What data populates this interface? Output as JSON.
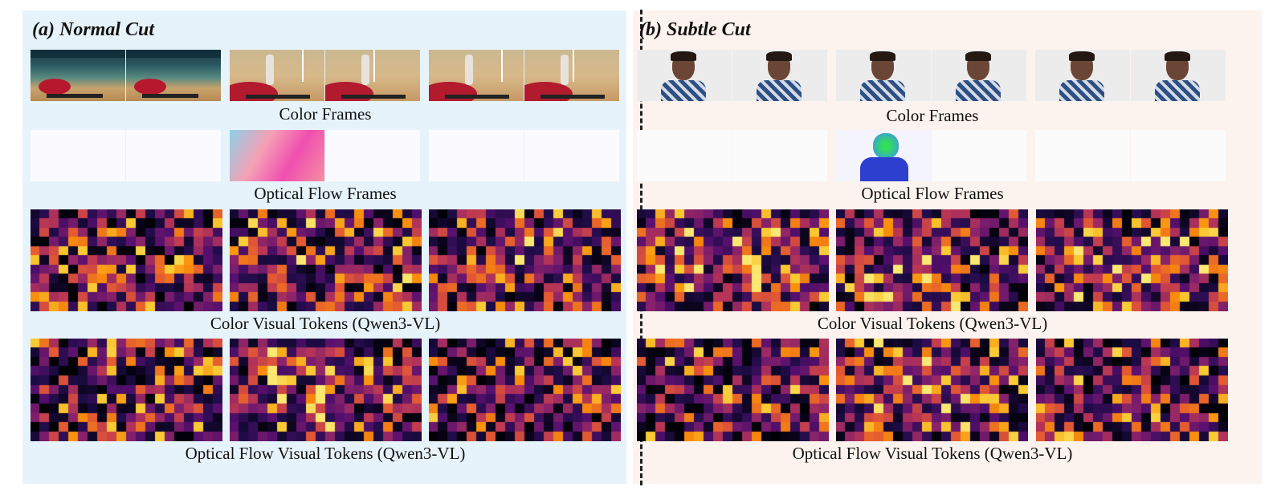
{
  "panels": [
    {
      "id": "a",
      "title": "(a) Normal Cut",
      "captions": {
        "color_frames": "Color Frames",
        "flow_frames": "Optical Flow Frames",
        "color_tokens": "Color Visual Tokens (Qwen3-VL)",
        "flow_tokens": "Optical Flow Visual Tokens (Qwen3-VL)"
      }
    },
    {
      "id": "b",
      "title": "(b) Subtle Cut",
      "captions": {
        "color_frames": "Color Frames",
        "flow_frames": "Optical Flow Frames",
        "color_tokens": "Color Visual Tokens (Qwen3-VL)",
        "flow_tokens": "Optical Flow Visual Tokens (Qwen3-VL)"
      }
    }
  ],
  "colors": {
    "panel_a_bg": "#e7f3fa",
    "panel_b_bg": "#fdf3ee",
    "colormap": "inferno"
  }
}
